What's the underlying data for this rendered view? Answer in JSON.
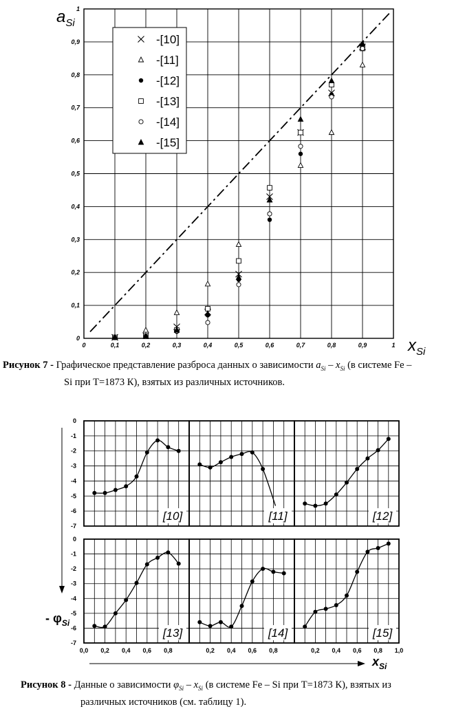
{
  "figure7": {
    "axis_y_label": "a",
    "axis_y_sub": "Si",
    "axis_x_label": "x",
    "axis_x_sub": "Si",
    "legend": [
      "-[10]",
      "-[11]",
      "-[12]",
      "-[13]",
      "-[14]",
      "-[15]"
    ],
    "caption_label": "Рисунок 7 -",
    "caption_text_1": "Графическое представление разброса данных о зависимости",
    "caption_formula_a": "a",
    "caption_formula_sub1": "Si",
    "caption_formula_dash": " – ",
    "caption_formula_x": "x",
    "caption_formula_sub2": "Si",
    "caption_text_2": " (в системе Fe –",
    "caption_text_3": "Si при T=1873 К), взятых из различных источников."
  },
  "figure8": {
    "axis_y_label": "- φ",
    "axis_y_sub": "Si",
    "axis_x_label": "x",
    "axis_x_sub": "Si",
    "caption_label": "Рисунок 8 -",
    "caption_text_1": "Данные о зависимости",
    "caption_formula_phi": "φ",
    "caption_formula_sub1": "Si",
    "caption_formula_dash": " – ",
    "caption_formula_x": "x",
    "caption_formula_sub2": "Si",
    "caption_text_2": " (в системе Fe – Si при T=1873 К), взятых из",
    "caption_text_3": "различных источников (см. таблицу 1)."
  },
  "chart_data": [
    {
      "type": "scatter",
      "x_ticks": [
        "0",
        "0,1",
        "0,2",
        "0,3",
        "0,4",
        "0,5",
        "0,6",
        "0,7",
        "0,8",
        "0,9",
        "1"
      ],
      "y_ticks": [
        "0",
        "0,1",
        "0,2",
        "0,3",
        "0,4",
        "0,5",
        "0,6",
        "0,7",
        "0,8",
        "0,9",
        "1"
      ],
      "xlim": [
        0,
        1
      ],
      "ylim": [
        0,
        1
      ],
      "grid": true,
      "legend_position": "top-left",
      "reference_line": {
        "style": "dash-dot",
        "x": [
          0.02,
          0.99
        ],
        "y": [
          0.02,
          0.99
        ]
      },
      "series": [
        {
          "name": "-[10]",
          "marker": "x",
          "x": [
            0.1,
            0.2,
            0.3,
            0.4,
            0.5,
            0.6,
            0.7,
            0.8,
            0.9
          ],
          "y": [
            0.003,
            0.008,
            0.035,
            0.08,
            0.195,
            0.43,
            0.625,
            0.745,
            0.885
          ]
        },
        {
          "name": "-[11]",
          "marker": "triangle-open",
          "x": [
            0.1,
            0.2,
            0.3,
            0.4,
            0.5,
            0.6,
            0.7,
            0.8,
            0.9
          ],
          "y": [
            0.004,
            0.025,
            0.078,
            0.165,
            0.285,
            0.42,
            0.525,
            0.625,
            0.83
          ]
        },
        {
          "name": "-[12]",
          "marker": "circle-filled",
          "x": [
            0.1,
            0.2,
            0.3,
            0.4,
            0.5,
            0.6,
            0.7,
            0.8,
            0.9
          ],
          "y": [
            0.002,
            0.005,
            0.02,
            0.07,
            0.178,
            0.36,
            0.56,
            0.74,
            0.89
          ]
        },
        {
          "name": "-[13]",
          "marker": "square-open",
          "x": [
            0.1,
            0.2,
            0.3,
            0.4,
            0.5,
            0.6,
            0.7,
            0.8,
            0.9
          ],
          "y": [
            0.003,
            0.006,
            0.025,
            0.09,
            0.235,
            0.457,
            0.625,
            0.77,
            0.88
          ]
        },
        {
          "name": "-[14]",
          "marker": "circle-open",
          "x": [
            0.1,
            0.2,
            0.3,
            0.4,
            0.5,
            0.6,
            0.7,
            0.8,
            0.9
          ],
          "y": [
            0.002,
            0.005,
            0.022,
            0.048,
            0.163,
            0.378,
            0.583,
            0.733,
            0.88
          ]
        },
        {
          "name": "-[15]",
          "marker": "triangle-filled",
          "x": [
            0.1,
            0.2,
            0.3,
            0.4,
            0.5,
            0.6,
            0.7,
            0.8,
            0.9
          ],
          "y": [
            0.003,
            0.007,
            0.025,
            0.075,
            0.185,
            0.42,
            0.665,
            0.782,
            0.895
          ]
        }
      ]
    },
    {
      "type": "line",
      "panels": [
        {
          "label": "[10]",
          "x": [
            0.1,
            0.2,
            0.3,
            0.4,
            0.5,
            0.6,
            0.7,
            0.8,
            0.9
          ],
          "y": [
            -4.8,
            -4.8,
            -4.6,
            -4.35,
            -3.7,
            -2.1,
            -1.3,
            -1.75,
            -2.0
          ]
        },
        {
          "label": "[11]",
          "x": [
            0.1,
            0.2,
            0.3,
            0.4,
            0.5,
            0.6,
            0.7
          ],
          "y": [
            -2.9,
            -3.1,
            -2.75,
            -2.4,
            -2.2,
            -2.1,
            -3.2
          ],
          "tail": {
            "x": 0.82,
            "y": -5.65
          }
        },
        {
          "label": "[12]",
          "x": [
            0.1,
            0.2,
            0.3,
            0.4,
            0.5,
            0.6,
            0.7,
            0.8,
            0.9
          ],
          "y": [
            -5.5,
            -5.65,
            -5.5,
            -4.9,
            -4.1,
            -3.2,
            -2.5,
            -1.95,
            -1.2
          ]
        },
        {
          "label": "[13]",
          "x": [
            0.1,
            0.2,
            0.3,
            0.4,
            0.5,
            0.6,
            0.7,
            0.8,
            0.9
          ],
          "y": [
            -5.85,
            -5.9,
            -5.0,
            -4.1,
            -2.95,
            -1.7,
            -1.25,
            -0.9,
            -1.65
          ]
        },
        {
          "label": "[14]",
          "x": [
            0.1,
            0.2,
            0.3,
            0.4,
            0.5,
            0.6,
            0.7,
            0.8,
            0.9
          ],
          "y": [
            -5.6,
            -5.85,
            -5.6,
            -5.9,
            -4.5,
            -2.85,
            -2.0,
            -2.2,
            -2.3
          ]
        },
        {
          "label": "[15]",
          "x": [
            0.1,
            0.2,
            0.3,
            0.4,
            0.5,
            0.6,
            0.7,
            0.8,
            0.9
          ],
          "y": [
            -5.9,
            -4.9,
            -4.7,
            -4.45,
            -3.8,
            -2.2,
            -0.85,
            -0.6,
            -0.3
          ]
        }
      ],
      "y_ticks": [
        "0",
        "-1",
        "-2",
        "-3",
        "-4",
        "-5",
        "-6",
        "-7"
      ],
      "x_ticks": [
        "0,0",
        "0,2",
        "0,4",
        "0,6",
        "0,8",
        "1,0"
      ],
      "xlim": [
        0,
        1
      ],
      "ylim": [
        -7,
        0
      ],
      "grid": true
    }
  ]
}
